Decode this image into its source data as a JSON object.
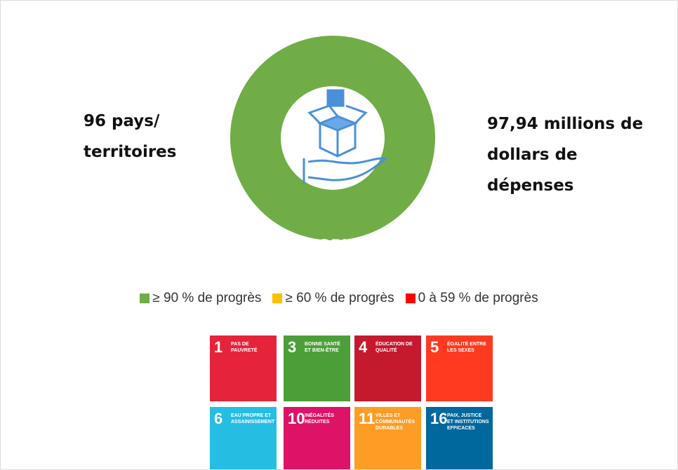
{
  "left_text": [
    "96 pays/",
    "territoires"
  ],
  "right_text": [
    "97,94 millions de",
    "dollars de",
    "dépenses"
  ],
  "donut": {
    "label": "135%",
    "color": "#70ad47"
  },
  "legend": [
    {
      "label": "≥ 90 % de progrès",
      "color": "#70ad47"
    },
    {
      "label": "≥ 60 % de progrès",
      "color": "#ffc000"
    },
    {
      "label": "0 à 59 % de progrès",
      "color": "#ff0000"
    }
  ],
  "goals": [
    {
      "number": "1",
      "label": "PAS DE PAUVRETÉ",
      "color": "#e5243b"
    },
    {
      "number": "3",
      "label": "BONNE SANTÉ ET BIEN-ÊTRE",
      "color": "#4c9f38"
    },
    {
      "number": "4",
      "label": "ÉDUCATION DE QUALITÉ",
      "color": "#c5192d"
    },
    {
      "number": "5",
      "label": "ÉGALITÉ ENTRE LES SEXES",
      "color": "#ff3a21"
    },
    {
      "number": "6",
      "label": "EAU PROPRE ET ASSAINISSEMENT",
      "color": "#26bde2"
    },
    {
      "number": "10",
      "label": "INÉGALITÉS RÉDUITES",
      "color": "#dd1367"
    },
    {
      "number": "11",
      "label": "VILLES ET COMMUNAUTÉS DURABLES",
      "color": "#fd9d24"
    },
    {
      "number": "16",
      "label": "PAIX, JUSTICE ET INSTITUTIONS EFFICACES",
      "color": "#00689d"
    }
  ]
}
